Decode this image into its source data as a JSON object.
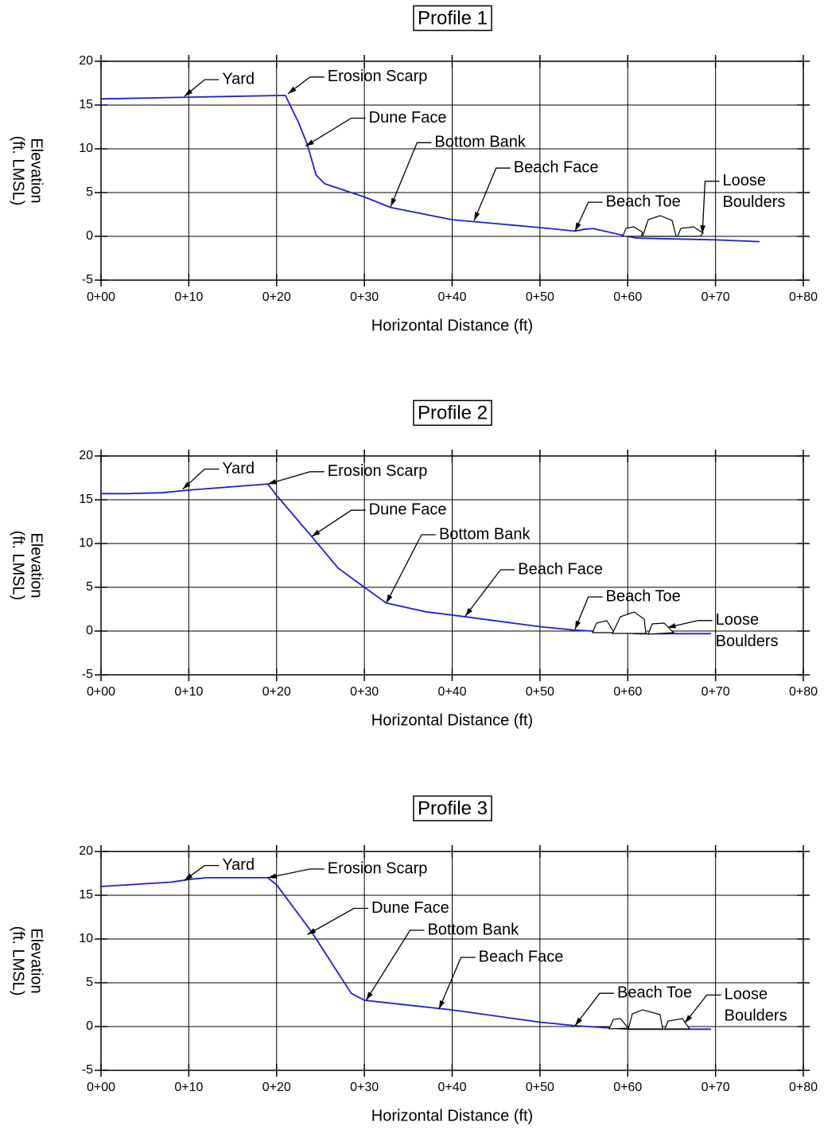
{
  "chart_data": [
    {
      "type": "line",
      "title": "Profile 1",
      "xlabel": "Horizontal Distance (ft)",
      "ylabel": [
        "Elevation",
        "(ft. LMSL)"
      ],
      "x": [
        0,
        10,
        21,
        22.5,
        23.5,
        24.5,
        25.5,
        27,
        30,
        33,
        40,
        50,
        54,
        55,
        56,
        60,
        61,
        70,
        75
      ],
      "values": [
        15.7,
        15.9,
        16.1,
        13,
        10.5,
        7,
        6,
        5.5,
        4.5,
        3.3,
        1.9,
        1.0,
        0.6,
        0.8,
        0.9,
        0,
        -0.2,
        -0.4,
        -0.6
      ],
      "color": "#1f1fd0",
      "xlim": [
        0,
        80
      ],
      "ylim": [
        -5,
        20
      ],
      "xticks": [
        {
          "value": 0,
          "label": "0+00"
        },
        {
          "value": 10,
          "label": "0+10"
        },
        {
          "value": 20,
          "label": "0+20"
        },
        {
          "value": 30,
          "label": "0+30"
        },
        {
          "value": 40,
          "label": "0+40"
        },
        {
          "value": 50,
          "label": "0+50"
        },
        {
          "value": 60,
          "label": "0+60"
        },
        {
          "value": 70,
          "label": "0+70"
        },
        {
          "value": 80,
          "label": "0+80"
        }
      ],
      "yticks": [
        -5,
        0,
        5,
        10,
        15,
        20
      ],
      "grid": true,
      "annotations": [
        {
          "text": [
            "Yard"
          ],
          "xy": [
            9.5,
            16
          ],
          "xytext": [
            13.8,
            17.9
          ]
        },
        {
          "text": [
            "Erosion Scarp"
          ],
          "xy": [
            21.3,
            16.3
          ],
          "xytext": [
            25.8,
            18.2
          ]
        },
        {
          "text": [
            "Dune Face"
          ],
          "xy": [
            23.3,
            10.3
          ],
          "xytext": [
            30.5,
            13.5
          ]
        },
        {
          "text": [
            "Bottom Bank"
          ],
          "xy": [
            33,
            3.4
          ],
          "xytext": [
            38,
            10.7
          ]
        },
        {
          "text": [
            "Beach Face"
          ],
          "xy": [
            42.5,
            1.8
          ],
          "xytext": [
            47,
            7.8
          ]
        },
        {
          "text": [
            "Beach Toe"
          ],
          "xy": [
            54,
            0.6
          ],
          "xytext": [
            57.5,
            3.9
          ]
        },
        {
          "text": [
            "Loose",
            "Boulders"
          ],
          "xy": [
            68.5,
            0.3
          ],
          "xytext": [
            70.8,
            6.3
          ]
        }
      ]
    },
    {
      "type": "line",
      "title": "Profile 2",
      "xlabel": "Horizontal Distance (ft)",
      "ylabel": [
        "Elevation",
        "(ft. LMSL)"
      ],
      "x": [
        0,
        3,
        7,
        10,
        19,
        20,
        24,
        27,
        30,
        32.5,
        37,
        41,
        50,
        54,
        60,
        61,
        69.5
      ],
      "values": [
        15.7,
        15.7,
        15.8,
        16.1,
        16.8,
        15.5,
        10.8,
        7.2,
        5,
        3.2,
        2.2,
        1.7,
        0.5,
        0.1,
        -0.2,
        -0.3,
        -0.3
      ],
      "color": "#1f1fd0",
      "xlim": [
        0,
        80
      ],
      "ylim": [
        -5,
        20
      ],
      "xticks": [
        {
          "value": 0,
          "label": "0+00"
        },
        {
          "value": 10,
          "label": "0+10"
        },
        {
          "value": 20,
          "label": "0+20"
        },
        {
          "value": 30,
          "label": "0+30"
        },
        {
          "value": 40,
          "label": "0+40"
        },
        {
          "value": 50,
          "label": "0+50"
        },
        {
          "value": 60,
          "label": "0+60"
        },
        {
          "value": 70,
          "label": "0+70"
        },
        {
          "value": 80,
          "label": "0+80"
        }
      ],
      "yticks": [
        -5,
        0,
        5,
        10,
        15,
        20
      ],
      "grid": true,
      "annotations": [
        {
          "text": [
            "Yard"
          ],
          "xy": [
            9.3,
            16.2
          ],
          "xytext": [
            13.8,
            18.5
          ]
        },
        {
          "text": [
            "Erosion Scarp"
          ],
          "xy": [
            19,
            16.8
          ],
          "xytext": [
            25.8,
            18.2
          ]
        },
        {
          "text": [
            "Dune Face"
          ],
          "xy": [
            24,
            10.8
          ],
          "xytext": [
            30.5,
            13.8
          ]
        },
        {
          "text": [
            "Bottom Bank"
          ],
          "xy": [
            32.5,
            3.2
          ],
          "xytext": [
            38.5,
            11
          ]
        },
        {
          "text": [
            "Beach Face"
          ],
          "xy": [
            41.5,
            1.7
          ],
          "xytext": [
            47.5,
            7
          ]
        },
        {
          "text": [
            "Beach Toe"
          ],
          "xy": [
            54,
            0.2
          ],
          "xytext": [
            57.5,
            3.9
          ]
        },
        {
          "text": [
            "Loose",
            "Boulders"
          ],
          "xy": [
            64.5,
            0.4
          ],
          "xytext": [
            70,
            1.2
          ]
        }
      ]
    },
    {
      "type": "line",
      "title": "Profile 3",
      "xlabel": "Horizontal Distance (ft)",
      "ylabel": [
        "Elevation",
        "(ft. LMSL)"
      ],
      "x": [
        0,
        8,
        10,
        12,
        19,
        20,
        24,
        28.5,
        30,
        40,
        50,
        54,
        60,
        69.5
      ],
      "values": [
        16,
        16.5,
        16.8,
        17,
        17,
        16.2,
        10.8,
        3.8,
        3,
        1.9,
        0.5,
        0.1,
        -0.3,
        -0.3
      ],
      "color": "#1f1fd0",
      "xlim": [
        0,
        80
      ],
      "ylim": [
        -5,
        20
      ],
      "xticks": [
        {
          "value": 0,
          "label": "0+00"
        },
        {
          "value": 10,
          "label": "0+10"
        },
        {
          "value": 20,
          "label": "0+20"
        },
        {
          "value": 30,
          "label": "0+30"
        },
        {
          "value": 40,
          "label": "0+40"
        },
        {
          "value": 50,
          "label": "0+50"
        },
        {
          "value": 60,
          "label": "0+60"
        },
        {
          "value": 70,
          "label": "0+70"
        },
        {
          "value": 80,
          "label": "0+80"
        }
      ],
      "yticks": [
        -5,
        0,
        5,
        10,
        15,
        20
      ],
      "grid": true,
      "annotations": [
        {
          "text": [
            "Yard"
          ],
          "xy": [
            9.5,
            16.7
          ],
          "xytext": [
            13.8,
            18.4
          ]
        },
        {
          "text": [
            "Erosion Scarp"
          ],
          "xy": [
            19,
            17
          ],
          "xytext": [
            25.8,
            18
          ]
        },
        {
          "text": [
            "Dune Face"
          ],
          "xy": [
            23.5,
            10.5
          ],
          "xytext": [
            30.8,
            13.5
          ]
        },
        {
          "text": [
            "Bottom Bank"
          ],
          "xy": [
            30.2,
            3
          ],
          "xytext": [
            37.2,
            11
          ]
        },
        {
          "text": [
            "Beach Face"
          ],
          "xy": [
            38.5,
            2
          ],
          "xytext": [
            43,
            7.9
          ]
        },
        {
          "text": [
            "Beach Toe"
          ],
          "xy": [
            54,
            0.1
          ],
          "xytext": [
            58.8,
            3.8
          ]
        },
        {
          "text": [
            "Loose",
            "Boulders"
          ],
          "xy": [
            66.5,
            0.4
          ],
          "xytext": [
            71,
            3.6
          ]
        }
      ]
    }
  ]
}
